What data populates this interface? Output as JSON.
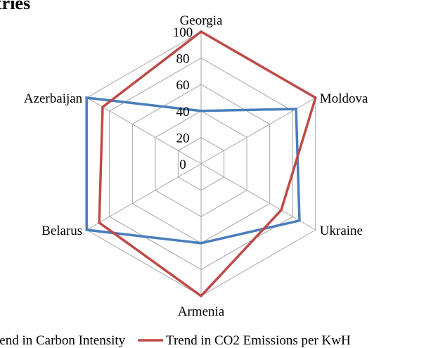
{
  "title_fragment": "tries",
  "chart_data": {
    "type": "radar",
    "categories": [
      "Georgia",
      "Moldova",
      "Ukraine",
      "Armenia",
      "Belarus",
      "Azerbaijan"
    ],
    "rlim": [
      0,
      100
    ],
    "ticks": [
      "0",
      "20",
      "40",
      "60",
      "80",
      "100"
    ],
    "grid": true,
    "legend_position": "bottom",
    "series": [
      {
        "name": "Trend in Carbon Intensity",
        "color": "#4a7ebb",
        "values": [
          40,
          83,
          86,
          60,
          100,
          100
        ]
      },
      {
        "name": "Trend in CO2 Emissions per KwH",
        "color": "#be4b48",
        "values": [
          100,
          100,
          70,
          100,
          89,
          86
        ]
      }
    ]
  }
}
